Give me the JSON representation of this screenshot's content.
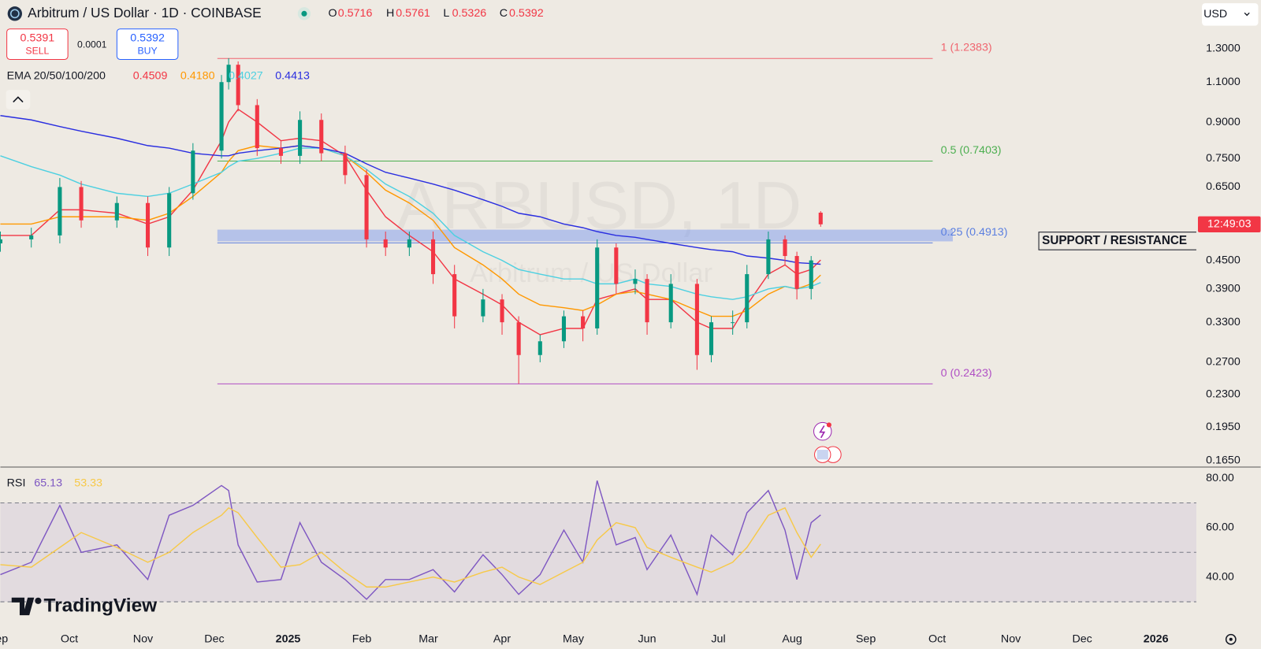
{
  "header": {
    "symbol": "Arbitrum / US Dollar · 1D · COINBASE",
    "ohlc": [
      {
        "key": "O",
        "value": "0.5716"
      },
      {
        "key": "H",
        "value": "0.5761"
      },
      {
        "key": "L",
        "value": "0.5326"
      },
      {
        "key": "C",
        "value": "0.5392"
      }
    ],
    "sell": {
      "price": "0.5391",
      "label": "SELL"
    },
    "spread": "0.0001",
    "buy": {
      "price": "0.5392",
      "label": "BUY"
    },
    "currency": "USD",
    "countdown": "12:49:03",
    "watermark": "ARBUSD, 1D",
    "watermark_sub": "Arbitrum / US Dollar",
    "brand": "TradingView"
  },
  "chart_data": [
    {
      "type": "candlestick",
      "log_scale": true,
      "up_color": "#089981",
      "down_color": "#f23645",
      "x": [
        -29,
        -16,
        -4,
        5,
        20,
        33,
        42,
        52,
        64,
        67,
        71,
        79,
        89,
        97,
        106,
        116,
        125,
        133,
        143,
        153,
        162,
        174,
        182,
        189,
        198,
        208,
        216,
        222,
        230,
        238,
        243,
        253,
        264,
        270,
        279,
        285,
        294,
        301,
        306,
        312,
        316
      ],
      "open": [
        0.49,
        0.5,
        0.51,
        0.65,
        0.55,
        0.6,
        0.48,
        0.63,
        0.78,
        1.1,
        1.2,
        0.98,
        0.79,
        0.76,
        0.91,
        0.77,
        0.69,
        0.5,
        0.48,
        0.5,
        0.42,
        0.34,
        0.37,
        0.33,
        0.28,
        0.3,
        0.34,
        0.32,
        0.48,
        0.4,
        0.41,
        0.33,
        0.4,
        0.28,
        0.33,
        0.33,
        0.42,
        0.5,
        0.46,
        0.39,
        0.5716
      ],
      "high": [
        0.52,
        0.53,
        0.68,
        0.67,
        0.62,
        0.62,
        0.65,
        0.81,
        1.14,
        1.24,
        1.22,
        1.01,
        0.82,
        0.95,
        0.94,
        0.8,
        0.71,
        0.52,
        0.52,
        0.52,
        0.44,
        0.39,
        0.38,
        0.34,
        0.31,
        0.35,
        0.35,
        0.5,
        0.49,
        0.43,
        0.42,
        0.42,
        0.41,
        0.34,
        0.35,
        0.44,
        0.52,
        0.51,
        0.47,
        0.46,
        0.5761
      ],
      "low": [
        0.47,
        0.48,
        0.49,
        0.53,
        0.53,
        0.46,
        0.46,
        0.61,
        0.75,
        1.06,
        0.95,
        0.76,
        0.73,
        0.73,
        0.74,
        0.66,
        0.48,
        0.46,
        0.46,
        0.4,
        0.32,
        0.33,
        0.31,
        0.2423,
        0.27,
        0.29,
        0.3,
        0.31,
        0.38,
        0.38,
        0.31,
        0.32,
        0.26,
        0.27,
        0.31,
        0.32,
        0.41,
        0.44,
        0.37,
        0.37,
        0.5326
      ],
      "close": [
        0.5,
        0.51,
        0.65,
        0.55,
        0.6,
        0.48,
        0.63,
        0.78,
        1.1,
        1.2,
        0.98,
        0.79,
        0.76,
        0.91,
        0.77,
        0.69,
        0.5,
        0.48,
        0.5,
        0.42,
        0.34,
        0.37,
        0.33,
        0.28,
        0.3,
        0.34,
        0.32,
        0.48,
        0.4,
        0.41,
        0.33,
        0.4,
        0.28,
        0.33,
        0.33,
        0.42,
        0.5,
        0.46,
        0.39,
        0.45,
        0.5392
      ],
      "indicator": "EMA 20/50/100/200",
      "series": [
        {
          "color": "#f23645",
          "last_label": "0.4509",
          "values": [
            0.51,
            0.51,
            0.58,
            0.58,
            0.57,
            0.54,
            0.56,
            0.64,
            0.82,
            0.9,
            0.96,
            0.9,
            0.82,
            0.83,
            0.82,
            0.76,
            0.64,
            0.56,
            0.51,
            0.47,
            0.41,
            0.38,
            0.36,
            0.33,
            0.31,
            0.32,
            0.32,
            0.37,
            0.38,
            0.39,
            0.37,
            0.37,
            0.33,
            0.32,
            0.32,
            0.36,
            0.42,
            0.44,
            0.42,
            0.43,
            0.4509
          ]
        },
        {
          "color": "#ff9800",
          "last_label": "0.4180",
          "values": [
            0.54,
            0.54,
            0.56,
            0.56,
            0.56,
            0.55,
            0.57,
            0.62,
            0.7,
            0.74,
            0.78,
            0.8,
            0.79,
            0.8,
            0.79,
            0.76,
            0.7,
            0.64,
            0.6,
            0.55,
            0.48,
            0.44,
            0.41,
            0.38,
            0.36,
            0.355,
            0.35,
            0.36,
            0.38,
            0.385,
            0.38,
            0.37,
            0.35,
            0.34,
            0.34,
            0.35,
            0.38,
            0.395,
            0.39,
            0.4,
            0.418
          ]
        },
        {
          "color": "#4dd0e1",
          "last_label": "0.4027",
          "values": [
            0.76,
            0.72,
            0.69,
            0.66,
            0.63,
            0.62,
            0.63,
            0.66,
            0.7,
            0.72,
            0.74,
            0.75,
            0.77,
            0.79,
            0.79,
            0.76,
            0.71,
            0.66,
            0.62,
            0.57,
            0.51,
            0.47,
            0.45,
            0.43,
            0.42,
            0.41,
            0.41,
            0.4,
            0.4,
            0.41,
            0.4,
            0.395,
            0.38,
            0.375,
            0.37,
            0.375,
            0.39,
            0.395,
            0.39,
            0.395,
            0.4027
          ]
        },
        {
          "color": "#2a2ee0",
          "last_label": "0.4413",
          "values": [
            0.93,
            0.91,
            0.88,
            0.86,
            0.83,
            0.8,
            0.79,
            0.77,
            0.76,
            0.76,
            0.77,
            0.78,
            0.79,
            0.8,
            0.79,
            0.77,
            0.73,
            0.7,
            0.68,
            0.66,
            0.64,
            0.61,
            0.59,
            0.57,
            0.56,
            0.54,
            0.53,
            0.52,
            0.51,
            0.505,
            0.5,
            0.49,
            0.48,
            0.475,
            0.47,
            0.46,
            0.455,
            0.45,
            0.445,
            0.443,
            0.4413
          ]
        }
      ],
      "fib_levels": [
        {
          "value": 1.2383,
          "label": "1 (1.2383)",
          "color": "#f0656f"
        },
        {
          "value": 0.7403,
          "label": "0.5 (0.7403)",
          "color": "#4caf50"
        },
        {
          "value": 0.4913,
          "label": "0.25 (0.4913)",
          "color": "#5b7fe0"
        },
        {
          "value": 0.2423,
          "label": "0 (0.2423)",
          "color": "#b04fc4"
        }
      ],
      "zone": {
        "label": "SUPPORT / RESISTANCE",
        "low": 0.495,
        "high": 0.525,
        "color": "#6f93f0"
      },
      "xlim": [
        -29,
        474
      ],
      "ylim": [
        0.16,
        1.66
      ],
      "yticks": [
        {
          "value": 1.3,
          "label": "1.3000"
        },
        {
          "value": 1.1,
          "label": "1.1000"
        },
        {
          "value": 0.9,
          "label": "0.9000"
        },
        {
          "value": 0.75,
          "label": "0.7500"
        },
        {
          "value": 0.65,
          "label": "0.6500"
        },
        {
          "value": 0.45,
          "label": "0.4500"
        },
        {
          "value": 0.39,
          "label": "0.3900"
        },
        {
          "value": 0.33,
          "label": "0.3300"
        },
        {
          "value": 0.27,
          "label": "0.2700"
        },
        {
          "value": 0.23,
          "label": "0.2300"
        },
        {
          "value": 0.195,
          "label": "0.1950"
        },
        {
          "value": 0.165,
          "label": "0.1650"
        }
      ]
    },
    {
      "type": "line",
      "title": "RSI",
      "x": [
        -29,
        -16,
        -4,
        5,
        20,
        33,
        42,
        52,
        64,
        67,
        71,
        79,
        89,
        97,
        106,
        116,
        125,
        133,
        143,
        153,
        162,
        174,
        182,
        189,
        198,
        208,
        216,
        222,
        230,
        238,
        243,
        253,
        264,
        270,
        279,
        285,
        294,
        301,
        306,
        312,
        316
      ],
      "series": [
        {
          "color": "#7e57c2",
          "last_label": "65.13",
          "values": [
            41,
            46,
            69,
            50,
            53,
            39,
            65,
            69,
            77,
            75,
            53,
            38,
            39,
            62,
            46,
            39,
            31,
            39,
            39,
            43,
            34,
            49,
            41,
            33,
            41,
            59,
            46,
            79,
            53,
            56,
            43,
            57,
            33,
            57,
            49,
            66,
            75,
            59,
            39,
            62,
            65.13
          ]
        },
        {
          "color": "#f7c948",
          "last_label": "53.33",
          "values": [
            45,
            44,
            52,
            58,
            52,
            46,
            50,
            58,
            65,
            68,
            66,
            56,
            44,
            45,
            50,
            42,
            36,
            36,
            38,
            40,
            38,
            42,
            44,
            40,
            37,
            42,
            46,
            55,
            62,
            60,
            52,
            48,
            44,
            42,
            46,
            52,
            65,
            68,
            58,
            48,
            53.33
          ]
        }
      ],
      "levels": [
        70,
        50,
        30
      ],
      "xlim": [
        -29,
        474
      ],
      "ylim": [
        20,
        84
      ],
      "yticks": [
        {
          "value": 80,
          "label": "80.00"
        },
        {
          "value": 60,
          "label": "60.00"
        },
        {
          "value": 40,
          "label": "40.00"
        }
      ],
      "xticks": [
        {
          "value": -30,
          "label": "Sep"
        },
        {
          "value": 0,
          "label": "Oct"
        },
        {
          "value": 31,
          "label": "Nov"
        },
        {
          "value": 61,
          "label": "Dec"
        },
        {
          "value": 92,
          "label": "2025"
        },
        {
          "value": 123,
          "label": "Feb"
        },
        {
          "value": 151,
          "label": "Mar"
        },
        {
          "value": 182,
          "label": "Apr"
        },
        {
          "value": 212,
          "label": "May"
        },
        {
          "value": 243,
          "label": "Jun"
        },
        {
          "value": 273,
          "label": "Jul"
        },
        {
          "value": 304,
          "label": "Aug"
        },
        {
          "value": 335,
          "label": "Sep"
        },
        {
          "value": 365,
          "label": "Oct"
        },
        {
          "value": 396,
          "label": "Nov"
        },
        {
          "value": 426,
          "label": "Dec"
        },
        {
          "value": 457,
          "label": "2026"
        }
      ]
    }
  ]
}
